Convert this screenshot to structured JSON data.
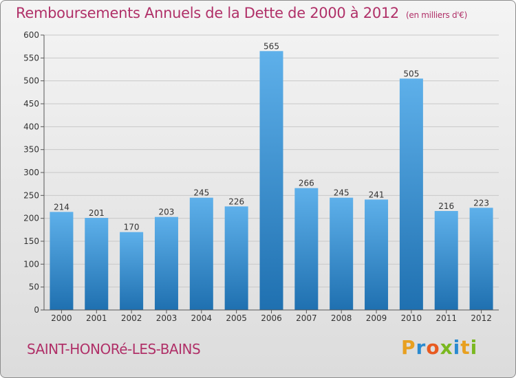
{
  "header": {
    "title": "Remboursements Annuels de la Dette de 2000 à 2012",
    "subtitle": "(en milliers d'€)"
  },
  "footer": {
    "commune": "SAINT-HONORé-LES-BAINS",
    "brand": "Proxiti"
  },
  "colors": {
    "title": "#b03068",
    "bar_top": "#5eb0ea",
    "bar_bottom": "#1f70b0",
    "brand_letters": [
      "#e8a020",
      "#2a8ad0",
      "#e85a20",
      "#7ab820",
      "#2a8ad0",
      "#e8a020",
      "#7ab820"
    ]
  },
  "chart_data": {
    "type": "bar",
    "categories": [
      "2000",
      "2001",
      "2002",
      "2003",
      "2004",
      "2005",
      "2006",
      "2007",
      "2008",
      "2009",
      "2010",
      "2011",
      "2012"
    ],
    "values": [
      214,
      201,
      170,
      203,
      245,
      226,
      565,
      266,
      245,
      241,
      505,
      216,
      223
    ],
    "ylim": [
      0,
      600
    ],
    "yticks": [
      0,
      50,
      100,
      150,
      200,
      250,
      300,
      350,
      400,
      450,
      500,
      550,
      600
    ],
    "grid": true,
    "xlabel": "",
    "ylabel": ""
  }
}
